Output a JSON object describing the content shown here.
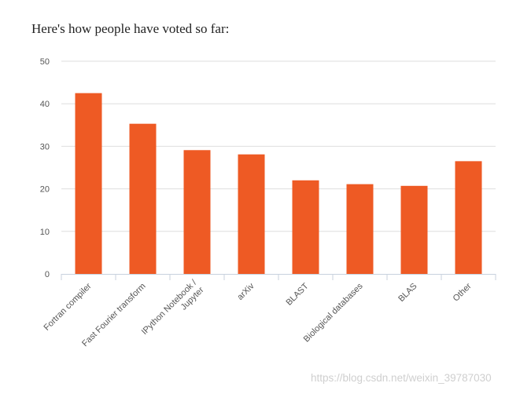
{
  "header": {
    "title": "Here's how people have voted so far:"
  },
  "watermark": "https://blog.csdn.net/weixin_39787030",
  "chart_data": {
    "type": "bar",
    "categories": [
      "Fortran compiler",
      "Fast Fourier transform",
      "IPython Notebook / Jupyter",
      "arXiv",
      "BLAST",
      "Biological databases",
      "BLAS",
      "Other"
    ],
    "values": [
      42.5,
      35.3,
      29.1,
      28.1,
      22.0,
      21.1,
      20.7,
      26.5
    ],
    "ylim": [
      0,
      50
    ],
    "yticks": [
      0,
      10,
      20,
      30,
      40,
      50
    ],
    "grid": true,
    "bar_color": "#ee5a24",
    "grid_color": "#dedede",
    "axis_color": "#c8d2de"
  }
}
